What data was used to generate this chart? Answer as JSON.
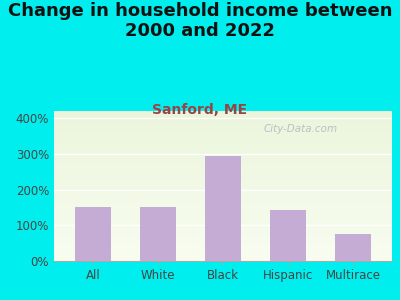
{
  "title": "Change in household income between\n2000 and 2022",
  "subtitle": "Sanford, ME",
  "categories": [
    "All",
    "White",
    "Black",
    "Hispanic",
    "Multirace"
  ],
  "values": [
    150,
    152,
    295,
    143,
    75
  ],
  "bar_color": "#c4acd4",
  "background_color": "#00EEEE",
  "title_fontsize": 13,
  "title_color": "#111111",
  "subtitle_fontsize": 10,
  "subtitle_color": "#994444",
  "ylabel_ticks": [
    0,
    100,
    200,
    300,
    400
  ],
  "ylim": [
    0,
    420
  ],
  "watermark": "City-Data.com",
  "watermark_color": "#b0b8c0",
  "grid_color": "#d8e8d0",
  "tick_fontsize": 8.5
}
